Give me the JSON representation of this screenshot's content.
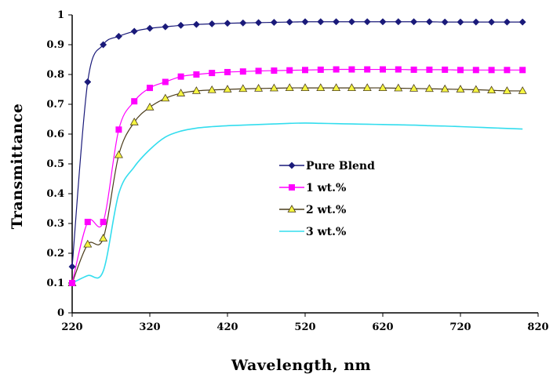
{
  "chart_data": {
    "type": "line",
    "xlabel": "Wavelength, nm",
    "ylabel": "Transmittance",
    "xlim": [
      220,
      820
    ],
    "ylim": [
      0,
      1
    ],
    "x_ticks": [
      "220",
      "320",
      "420",
      "520",
      "620",
      "720",
      "820"
    ],
    "y_ticks": [
      "0",
      "0.1",
      "0.2",
      "0.3",
      "0.4",
      "0.5",
      "0.6",
      "0.7",
      "0.8",
      "0.9",
      "1"
    ],
    "legend_position": "center-right",
    "x": [
      220,
      240,
      260,
      280,
      300,
      320,
      340,
      360,
      380,
      400,
      420,
      440,
      460,
      480,
      500,
      520,
      540,
      560,
      580,
      600,
      620,
      640,
      660,
      680,
      700,
      720,
      740,
      760,
      780,
      800
    ],
    "series": [
      {
        "name": "Pure Blend",
        "color": "#1a1a7a",
        "marker": "diamond",
        "values": [
          0.155,
          0.775,
          0.9,
          0.928,
          0.945,
          0.955,
          0.96,
          0.965,
          0.968,
          0.97,
          0.972,
          0.973,
          0.974,
          0.975,
          0.976,
          0.977,
          0.977,
          0.977,
          0.977,
          0.977,
          0.977,
          0.977,
          0.977,
          0.977,
          0.976,
          0.976,
          0.976,
          0.976,
          0.976,
          0.976
        ]
      },
      {
        "name": "1 wt.%",
        "color": "#ff00ff",
        "marker": "square",
        "values": [
          0.1,
          0.305,
          0.305,
          0.615,
          0.71,
          0.755,
          0.775,
          0.793,
          0.8,
          0.805,
          0.808,
          0.81,
          0.812,
          0.813,
          0.814,
          0.815,
          0.816,
          0.817,
          0.817,
          0.817,
          0.817,
          0.817,
          0.816,
          0.816,
          0.816,
          0.815,
          0.815,
          0.815,
          0.815,
          0.815
        ]
      },
      {
        "name": "2 wt.%",
        "color": "#f5f542",
        "line_color": "#4a3b1a",
        "marker": "triangle",
        "values": [
          0.1,
          0.23,
          0.25,
          0.53,
          0.64,
          0.69,
          0.72,
          0.737,
          0.745,
          0.748,
          0.75,
          0.752,
          0.753,
          0.754,
          0.755,
          0.755,
          0.755,
          0.755,
          0.755,
          0.755,
          0.755,
          0.754,
          0.753,
          0.752,
          0.751,
          0.75,
          0.749,
          0.747,
          0.745,
          0.745
        ]
      },
      {
        "name": "3 wt.%",
        "color": "#33ddee",
        "marker": "none",
        "values": [
          0.1,
          0.125,
          0.14,
          0.4,
          0.49,
          0.548,
          0.59,
          0.61,
          0.62,
          0.625,
          0.628,
          0.63,
          0.632,
          0.634,
          0.636,
          0.637,
          0.636,
          0.635,
          0.634,
          0.633,
          0.632,
          0.631,
          0.63,
          0.628,
          0.627,
          0.625,
          0.623,
          0.621,
          0.619,
          0.617
        ]
      }
    ]
  }
}
